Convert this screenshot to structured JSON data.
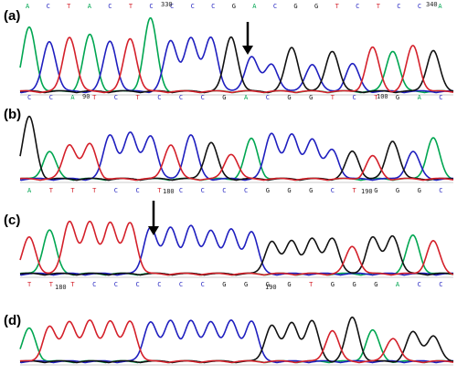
{
  "colors": {
    "A": "#00a651",
    "C": "#1f1fbf",
    "G": "#111111",
    "T": "#d4202a"
  },
  "panels": [
    {
      "label": "(a)",
      "top_bases": [
        "A",
        "C",
        "T",
        "A",
        "C",
        "T",
        "C",
        "C",
        "C",
        "C",
        "G",
        "A",
        "C",
        "G",
        "G",
        "T",
        "C",
        "T",
        "C",
        "C",
        "A"
      ],
      "bottom_bases": [
        "C",
        "C",
        "A",
        "T",
        "C",
        "T",
        "C",
        "C",
        "C",
        "G",
        "A",
        "C",
        "G",
        "G",
        "T",
        "C",
        "T",
        "G",
        "A",
        "C"
      ],
      "numbers": [
        "330",
        "340",
        "90",
        "100"
      ],
      "arrow": true,
      "peaks": [
        "A",
        "C",
        "T",
        "A",
        "C",
        "T",
        "A",
        "C",
        "C",
        "C",
        "G",
        "C",
        "C",
        "G",
        "C",
        "G",
        "C",
        "T",
        "A",
        "T",
        "G"
      ]
    },
    {
      "label": "(b)",
      "top_bases": [],
      "bottom_bases": [
        "A",
        "T",
        "T",
        "T",
        "C",
        "C",
        "T",
        "C",
        "C",
        "C",
        "C",
        "G",
        "G",
        "G",
        "C",
        "T",
        "G",
        "G",
        "G",
        "C"
      ],
      "numbers": [
        "180",
        "190"
      ],
      "arrow": false,
      "peaks": [
        "G",
        "A",
        "T",
        "T",
        "C",
        "C",
        "C",
        "T",
        "C",
        "G",
        "T",
        "A",
        "C",
        "C",
        "C",
        "C",
        "G",
        "T",
        "G",
        "C",
        "A"
      ]
    },
    {
      "label": "(c)",
      "top_bases": [],
      "bottom_bases": [
        "T",
        "T",
        "T",
        "C",
        "C",
        "C",
        "C",
        "C",
        "C",
        "G",
        "G",
        "G",
        "G",
        "T",
        "G",
        "G",
        "G",
        "A",
        "C",
        "C"
      ],
      "numbers": [
        "180",
        "190"
      ],
      "arrow": true,
      "peaks": [
        "T",
        "A",
        "T",
        "T",
        "T",
        "T",
        "C",
        "C",
        "C",
        "C",
        "C",
        "C",
        "G",
        "G",
        "G",
        "G",
        "T",
        "G",
        "G",
        "A",
        "T"
      ]
    },
    {
      "label": "(d)",
      "top_bases": [],
      "bottom_bases": [],
      "numbers": [],
      "arrow": false,
      "peaks": [
        "A",
        "T",
        "T",
        "T",
        "T",
        "T",
        "C",
        "C",
        "C",
        "C",
        "C",
        "C",
        "G",
        "G",
        "G",
        "T",
        "G",
        "A",
        "T",
        "G",
        "G"
      ]
    }
  ]
}
